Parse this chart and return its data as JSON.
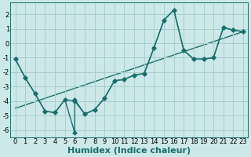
{
  "title": "",
  "xlabel": "Humidex (Indice chaleur)",
  "bg_color": "#cce8e8",
  "grid_color": "#a8cece",
  "line_color": "#1a6e6e",
  "xlim": [
    -0.5,
    23.5
  ],
  "ylim": [
    -6.5,
    2.8
  ],
  "xticks": [
    0,
    1,
    2,
    3,
    4,
    5,
    6,
    7,
    8,
    9,
    10,
    11,
    12,
    13,
    14,
    15,
    16,
    17,
    18,
    19,
    20,
    21,
    22,
    23
  ],
  "yticks": [
    -6,
    -5,
    -4,
    -3,
    -2,
    -1,
    0,
    1,
    2
  ],
  "line1_x": [
    0,
    1,
    2,
    3,
    4,
    5,
    6,
    6,
    7,
    8,
    9,
    10,
    11,
    12,
    13,
    14,
    15,
    16,
    17,
    18,
    19,
    20,
    21,
    22,
    23
  ],
  "line1_y": [
    -1.1,
    -2.4,
    -3.5,
    -4.7,
    -4.8,
    -3.9,
    -6.2,
    -3.9,
    -4.9,
    -4.6,
    -3.8,
    -2.6,
    -2.5,
    -2.2,
    -2.1,
    -0.3,
    1.6,
    2.3,
    -0.5,
    -1.1,
    -1.1,
    -1.0,
    1.1,
    0.9,
    0.8
  ],
  "line2_x": [
    0,
    1,
    2,
    3,
    4,
    5,
    6,
    7,
    8,
    9,
    10,
    11,
    12,
    13,
    14,
    15,
    16,
    17,
    18,
    19,
    20,
    21,
    22,
    23
  ],
  "line2_y": [
    -1.1,
    -2.4,
    -3.5,
    -4.7,
    -4.8,
    -3.9,
    -4.0,
    -4.9,
    -4.6,
    -3.8,
    -2.6,
    -2.5,
    -2.2,
    -2.1,
    -0.3,
    1.6,
    2.3,
    -0.5,
    -1.1,
    -1.1,
    -1.0,
    1.1,
    0.9,
    0.8
  ],
  "trend_x": [
    0,
    23
  ],
  "trend_y": [
    -4.5,
    0.8
  ],
  "marker_size": 2.5,
  "linewidth": 1.0,
  "font_size_label": 8,
  "font_size_tick": 6
}
